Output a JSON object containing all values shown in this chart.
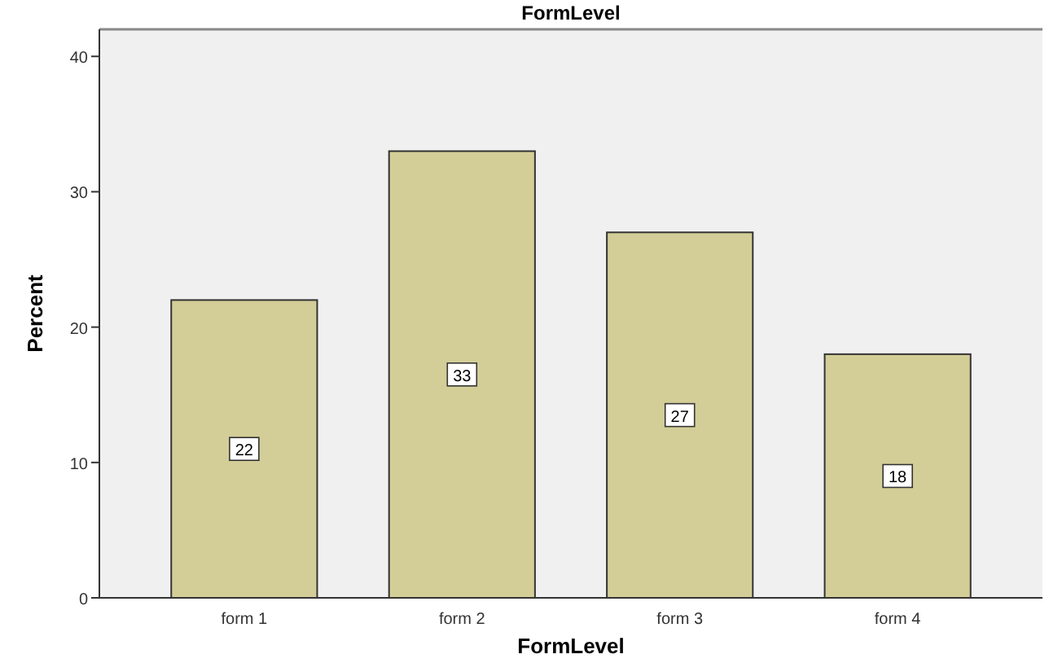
{
  "chart_data": {
    "type": "bar",
    "title": "FormLevel",
    "xlabel": "FormLevel",
    "ylabel": "Percent",
    "categories": [
      "form 1",
      "form 2",
      "form 3",
      "form 4"
    ],
    "values": [
      22,
      33,
      27,
      18
    ],
    "color": "#d3ce97",
    "data_labels": true,
    "ylim": [
      0,
      42
    ],
    "yticks": [
      0,
      10,
      20,
      30,
      40
    ],
    "grid": false
  }
}
